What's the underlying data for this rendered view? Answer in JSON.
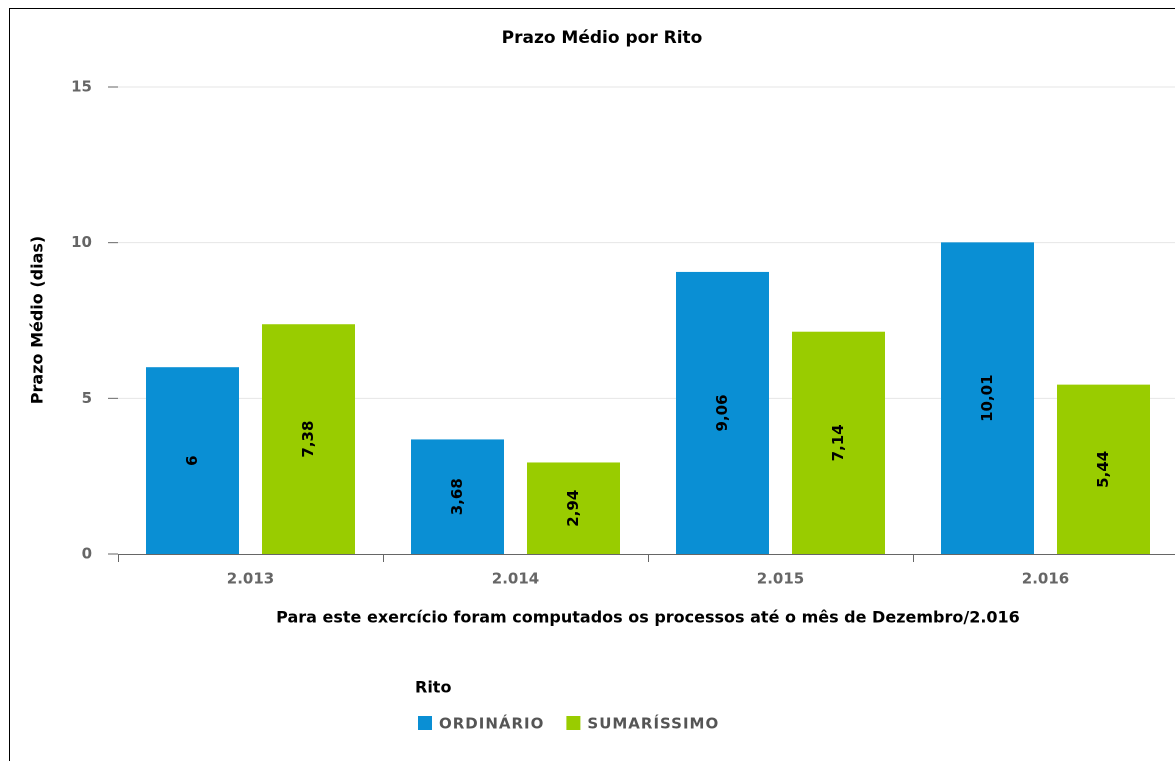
{
  "chart_data": {
    "type": "bar",
    "title": "Prazo Médio por Rito",
    "y_label": "Prazo Médio (dias)",
    "x_label": "Para este exercício foram computados os processos até o mês de Dezembro/2.016",
    "legend_title": "Rito",
    "categories": [
      "2.013",
      "2.014",
      "2.015",
      "2.016"
    ],
    "series": [
      {
        "name": "ORDINÁRIO",
        "color": "#0a8fd4",
        "values": [
          6,
          3.68,
          9.06,
          10.01
        ],
        "value_labels": [
          "6",
          "3,68",
          "9,06",
          "10,01"
        ]
      },
      {
        "name": "SUMARÍSSIMO",
        "color": "#99cc00",
        "values": [
          7.38,
          2.94,
          7.14,
          5.44
        ],
        "value_labels": [
          "7,38",
          "2,94",
          "7,14",
          "5,44"
        ]
      }
    ],
    "ylim": [
      0,
      15
    ],
    "yticks": [
      0,
      5,
      10,
      15
    ],
    "grid": true
  }
}
